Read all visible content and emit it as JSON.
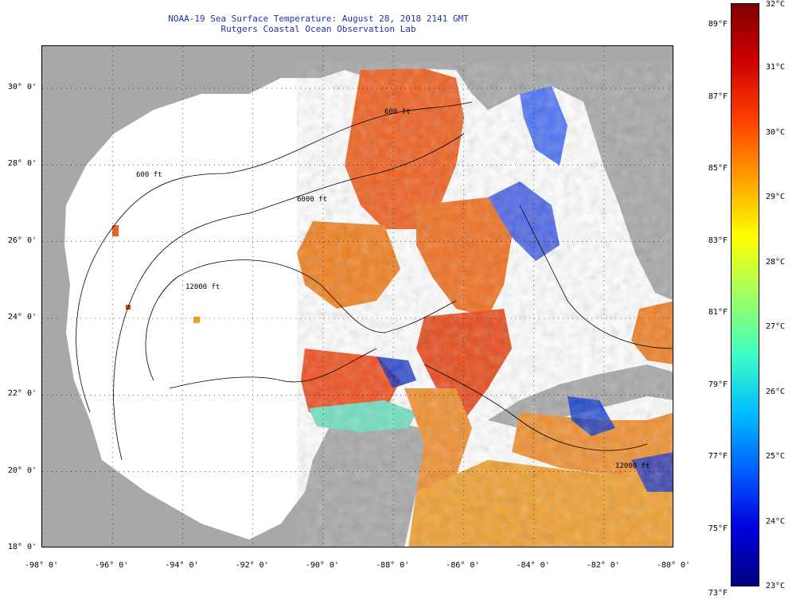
{
  "title": {
    "line1": "NOAA-19 Sea Surface Temperature:  August 28, 2018 2141 GMT",
    "line2": "Rutgers Coastal Ocean Observation Lab"
  },
  "map": {
    "lat_labels": [
      "30° 0'",
      "28° 0'",
      "26° 0'",
      "24° 0'",
      "22° 0'",
      "20° 0'",
      "18° 0'"
    ],
    "lon_labels": [
      "-98° 0'",
      "-96° 0'",
      "-94° 0'",
      "-92° 0'",
      "-90° 0'",
      "-88° 0'",
      "-86° 0'",
      "-84° 0'",
      "-82° 0'",
      "-80° 0'"
    ],
    "lat_range": [
      18,
      31.1
    ],
    "lon_range": [
      -98,
      -80
    ],
    "contour_labels": [
      "600 ft",
      "6000 ft",
      "12000 ft",
      "600 ft",
      "12000 ft"
    ],
    "colors": {
      "land": "#a8a8a8",
      "cloud": "#ffffff",
      "contour": "#000000",
      "grid": "#000000"
    }
  },
  "colorbar": {
    "fahrenheit_labels": [
      "89°F",
      "87°F",
      "85°F",
      "83°F",
      "81°F",
      "79°F",
      "77°F",
      "75°F",
      "73°F"
    ],
    "celsius_labels": [
      "32°C",
      "31°C",
      "30°C",
      "29°C",
      "28°C",
      "27°C",
      "26°C",
      "25°C",
      "24°C",
      "23°C"
    ],
    "range_c": [
      23,
      32
    ],
    "gradient": [
      "#000080",
      "#0000e0",
      "#0060ff",
      "#00c0ff",
      "#40ffc0",
      "#a0ff60",
      "#ffff00",
      "#ffa000",
      "#ff4000",
      "#d00000",
      "#800000"
    ]
  }
}
